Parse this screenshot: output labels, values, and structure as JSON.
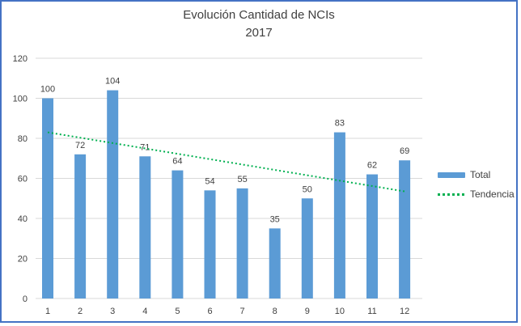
{
  "chart_data": {
    "type": "bar",
    "title": "Evolución Cantidad de NCIs",
    "subtitle": "2017",
    "categories": [
      "1",
      "2",
      "3",
      "4",
      "5",
      "6",
      "7",
      "8",
      "9",
      "10",
      "11",
      "12"
    ],
    "series": [
      {
        "name": "Total",
        "type": "bar",
        "values": [
          100,
          72,
          104,
          71,
          64,
          54,
          55,
          35,
          50,
          83,
          62,
          69
        ]
      },
      {
        "name": "Tendencia",
        "type": "trendline",
        "style": "dotted",
        "trend": {
          "start": 83,
          "end": 53.5
        }
      }
    ],
    "ylim": [
      0,
      120
    ],
    "yticks": [
      0,
      20,
      40,
      60,
      80,
      100,
      120
    ],
    "grid": true,
    "data_labels": true,
    "legend_position": "right"
  },
  "colors": {
    "frame_border": "#4472C4",
    "bar_fill": "#5B9BD5",
    "trend_line": "#00B050",
    "gridline": "#D9D9D9",
    "text": "#404040"
  }
}
